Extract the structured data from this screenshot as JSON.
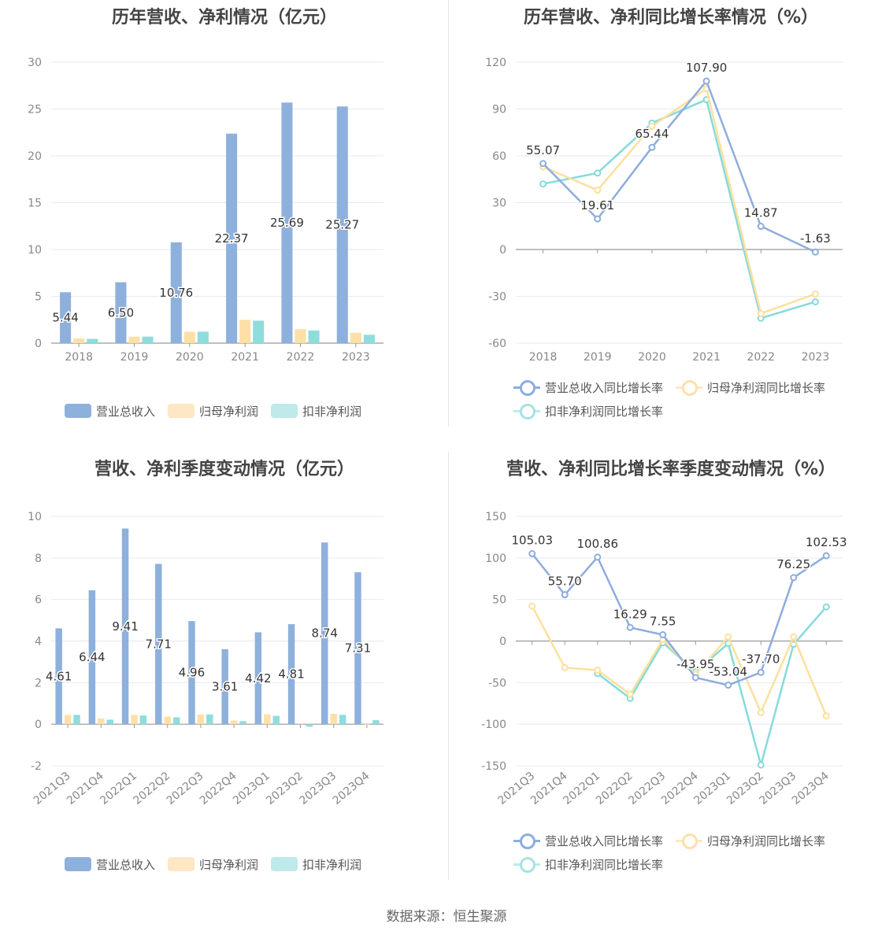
{
  "source": "数据来源：恒生聚源",
  "colors": {
    "revenue": "#8eb0dc",
    "netprofit": "#fde0a8",
    "deducted": "#8fdcdc",
    "revenue_line": "#8eaddd",
    "netprofit_line": "#fde09b",
    "deducted_line": "#87dada"
  },
  "legend_bar": [
    "营业总收入",
    "归母净利润",
    "扣非净利润"
  ],
  "legend_line": [
    "营业总收入同比增长率",
    "归母净利润同比增长率",
    "扣非净利润同比增长率"
  ],
  "chart_data": [
    {
      "type": "bar",
      "title": "历年营收、净利情况（亿元）",
      "categories": [
        "2018",
        "2019",
        "2020",
        "2021",
        "2022",
        "2023"
      ],
      "ylim": [
        0,
        30
      ],
      "yticks": [
        0,
        5,
        10,
        15,
        20,
        25,
        30
      ],
      "series": [
        {
          "name": "营业总收入",
          "values": [
            5.44,
            6.5,
            10.76,
            22.37,
            25.69,
            25.27
          ],
          "labels": [
            "5.44",
            "6.50",
            "10.76",
            "22.37",
            "25.69",
            "25.27"
          ]
        },
        {
          "name": "归母净利润",
          "values": [
            0.5,
            0.7,
            1.22,
            2.5,
            1.5,
            1.1
          ]
        },
        {
          "name": "扣非净利润",
          "values": [
            0.46,
            0.7,
            1.22,
            2.4,
            1.35,
            0.9
          ]
        }
      ]
    },
    {
      "type": "line",
      "title": "历年营收、净利同比增长率情况（%）",
      "categories": [
        "2018",
        "2019",
        "2020",
        "2021",
        "2022",
        "2023"
      ],
      "ylim": [
        -60,
        120
      ],
      "yticks": [
        -60,
        -30,
        0,
        30,
        60,
        90,
        120
      ],
      "series": [
        {
          "name": "营业总收入同比增长率",
          "values": [
            55.07,
            19.61,
            65.44,
            107.9,
            14.87,
            -1.63
          ],
          "labels": [
            "55.07",
            "19.61",
            "65.44",
            "107.90",
            "14.87",
            "-1.63"
          ]
        },
        {
          "name": "归母净利润同比增长率",
          "values": [
            53,
            38,
            79,
            103,
            -41,
            -28.5
          ]
        },
        {
          "name": "扣非净利润同比增长率",
          "values": [
            42,
            49,
            81,
            96,
            -44,
            -33.5
          ]
        }
      ]
    },
    {
      "type": "bar",
      "title": "营收、净利季度变动情况（亿元）",
      "categories": [
        "2021Q3",
        "2021Q4",
        "2022Q1",
        "2022Q2",
        "2022Q3",
        "2022Q4",
        "2023Q1",
        "2023Q2",
        "2023Q3",
        "2023Q4"
      ],
      "ylim": [
        -2,
        10
      ],
      "yticks": [
        -2,
        0,
        2,
        4,
        6,
        8,
        10
      ],
      "series": [
        {
          "name": "营业总收入",
          "values": [
            4.61,
            6.44,
            9.41,
            7.71,
            4.96,
            3.61,
            4.42,
            4.81,
            8.74,
            7.31
          ],
          "labels": [
            "4.61",
            "6.44",
            "9.41",
            "7.71",
            "4.96",
            "3.61",
            "4.42",
            "4.81",
            "8.74",
            "7.31"
          ]
        },
        {
          "name": "归母净利润",
          "values": [
            0.45,
            0.28,
            0.45,
            0.37,
            0.47,
            0.18,
            0.48,
            0.05,
            0.5,
            -0.04
          ]
        },
        {
          "name": "扣非净利润",
          "values": [
            0.45,
            0.22,
            0.42,
            0.33,
            0.47,
            0.15,
            0.4,
            -0.12,
            0.45,
            0.2
          ]
        }
      ]
    },
    {
      "type": "line",
      "title": "营收、净利同比增长率季度变动情况（%）",
      "categories": [
        "2021Q3",
        "2021Q4",
        "2022Q1",
        "2022Q2",
        "2022Q3",
        "2022Q4",
        "2023Q1",
        "2023Q2",
        "2023Q3",
        "2023Q4"
      ],
      "ylim": [
        -150,
        150
      ],
      "yticks": [
        -150,
        -100,
        -50,
        0,
        50,
        100,
        150
      ],
      "series": [
        {
          "name": "营业总收入同比增长率",
          "values": [
            105.03,
            55.7,
            100.86,
            16.29,
            7.55,
            -43.95,
            -53.04,
            -37.7,
            76.25,
            102.53
          ],
          "labels": [
            "105.03",
            "55.70",
            "100.86",
            "16.29",
            "7.55",
            "-43.95",
            "-53.04",
            "-37.70",
            "76.25",
            "102.53"
          ]
        },
        {
          "name": "归母净利润同比增长率",
          "values": [
            42,
            -32,
            -35,
            -64,
            2,
            -40,
            5,
            -86,
            5,
            -90
          ]
        },
        {
          "name": "扣非净利润同比增长率",
          "values": [
            null,
            null,
            -39,
            -69,
            -2,
            -37,
            -3,
            -149,
            -4,
            41
          ]
        }
      ]
    }
  ]
}
